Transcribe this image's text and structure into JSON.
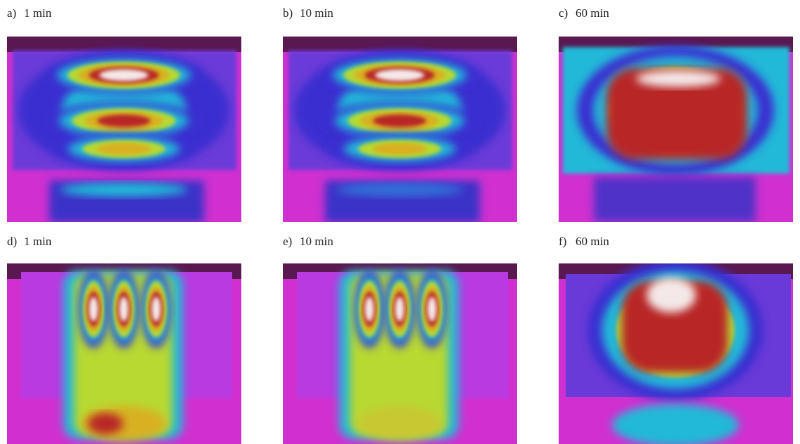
{
  "panels": [
    {
      "label": "a)",
      "caption": "1 min"
    },
    {
      "label": "b)",
      "caption": "10 min"
    },
    {
      "label": "c)",
      "caption": "60 min"
    },
    {
      "label": "d)",
      "caption": "1 min"
    },
    {
      "label": "e)",
      "caption": "10 min"
    },
    {
      "label": "f)",
      "caption": "60 min"
    }
  ]
}
